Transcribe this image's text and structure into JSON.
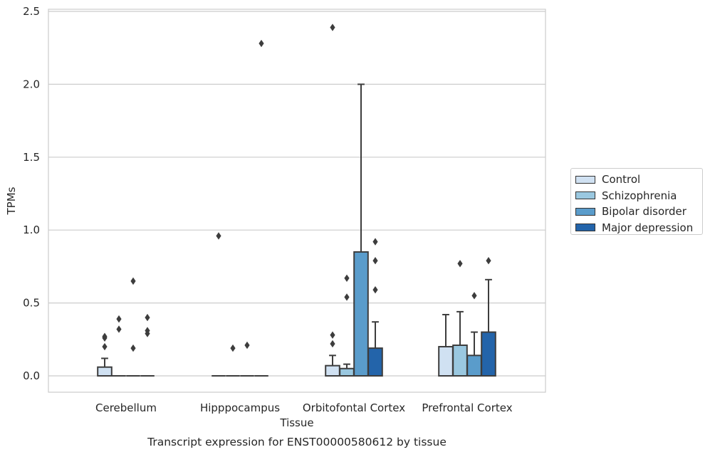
{
  "chart_data": {
    "type": "box",
    "xlabel": "Tissue",
    "ylabel": "TPMs",
    "caption": "Transcript expression for ENST00000580612 by tissue",
    "ylim": [
      -0.11,
      2.52
    ],
    "yticks": [
      "0.0",
      "0.5",
      "1.0",
      "1.5",
      "2.0",
      "2.5"
    ],
    "ytick_values": [
      0.0,
      0.5,
      1.0,
      1.5,
      2.0,
      2.5
    ],
    "grid": "horizontal",
    "legend_placement": "right",
    "categories": [
      "Cerebellum",
      "Hipppocampus",
      "Orbitofontal Cortex",
      "Prefrontal Cortex"
    ],
    "series": [
      {
        "name": "Control",
        "color": "#d0e1f2",
        "boxes": [
          {
            "q1": 0.0,
            "median": 0.0,
            "q3": 0.06,
            "whisker_low": 0.0,
            "whisker_high": 0.12,
            "outliers": [
              0.2,
              0.26,
              0.27
            ]
          },
          {
            "q1": 0.0,
            "median": 0.0,
            "q3": 0.0,
            "whisker_low": 0.0,
            "whisker_high": 0.0,
            "outliers": [
              0.96
            ]
          },
          {
            "q1": 0.0,
            "median": 0.0,
            "q3": 0.07,
            "whisker_low": 0.0,
            "whisker_high": 0.14,
            "outliers": [
              0.22,
              0.28,
              2.39
            ]
          },
          {
            "q1": 0.0,
            "median": 0.0,
            "q3": 0.2,
            "whisker_low": 0.0,
            "whisker_high": 0.42,
            "outliers": []
          }
        ]
      },
      {
        "name": "Schizophrenia",
        "color": "#9ac8e0",
        "boxes": [
          {
            "q1": 0.0,
            "median": 0.0,
            "q3": 0.0,
            "whisker_low": 0.0,
            "whisker_high": 0.0,
            "outliers": [
              0.32,
              0.39
            ]
          },
          {
            "q1": 0.0,
            "median": 0.0,
            "q3": 0.0,
            "whisker_low": 0.0,
            "whisker_high": 0.0,
            "outliers": [
              0.19
            ]
          },
          {
            "q1": 0.0,
            "median": 0.0,
            "q3": 0.05,
            "whisker_low": 0.0,
            "whisker_high": 0.08,
            "outliers": [
              0.54,
              0.67
            ]
          },
          {
            "q1": 0.0,
            "median": 0.0,
            "q3": 0.21,
            "whisker_low": 0.0,
            "whisker_high": 0.44,
            "outliers": [
              0.77
            ]
          }
        ]
      },
      {
        "name": "Bipolar disorder",
        "color": "#5a9ccb",
        "boxes": [
          {
            "q1": 0.0,
            "median": 0.0,
            "q3": 0.0,
            "whisker_low": 0.0,
            "whisker_high": 0.0,
            "outliers": [
              0.19,
              0.65
            ]
          },
          {
            "q1": 0.0,
            "median": 0.0,
            "q3": 0.0,
            "whisker_low": 0.0,
            "whisker_high": 0.0,
            "outliers": [
              0.21
            ]
          },
          {
            "q1": 0.0,
            "median": 0.0,
            "q3": 0.85,
            "whisker_low": 0.0,
            "whisker_high": 2.0,
            "outliers": []
          },
          {
            "q1": 0.0,
            "median": 0.0,
            "q3": 0.14,
            "whisker_low": 0.0,
            "whisker_high": 0.3,
            "outliers": [
              0.55
            ]
          }
        ]
      },
      {
        "name": "Major depression",
        "color": "#2364aa",
        "boxes": [
          {
            "q1": 0.0,
            "median": 0.0,
            "q3": 0.0,
            "whisker_low": 0.0,
            "whisker_high": 0.0,
            "outliers": [
              0.29,
              0.31,
              0.4
            ]
          },
          {
            "q1": 0.0,
            "median": 0.0,
            "q3": 0.0,
            "whisker_low": 0.0,
            "whisker_high": 0.0,
            "outliers": [
              2.28
            ]
          },
          {
            "q1": 0.0,
            "median": 0.0,
            "q3": 0.19,
            "whisker_low": 0.0,
            "whisker_high": 0.37,
            "outliers": [
              0.59,
              0.79,
              0.92
            ]
          },
          {
            "q1": 0.0,
            "median": 0.0,
            "q3": 0.3,
            "whisker_low": 0.0,
            "whisker_high": 0.66,
            "outliers": [
              0.79
            ]
          }
        ]
      }
    ]
  }
}
